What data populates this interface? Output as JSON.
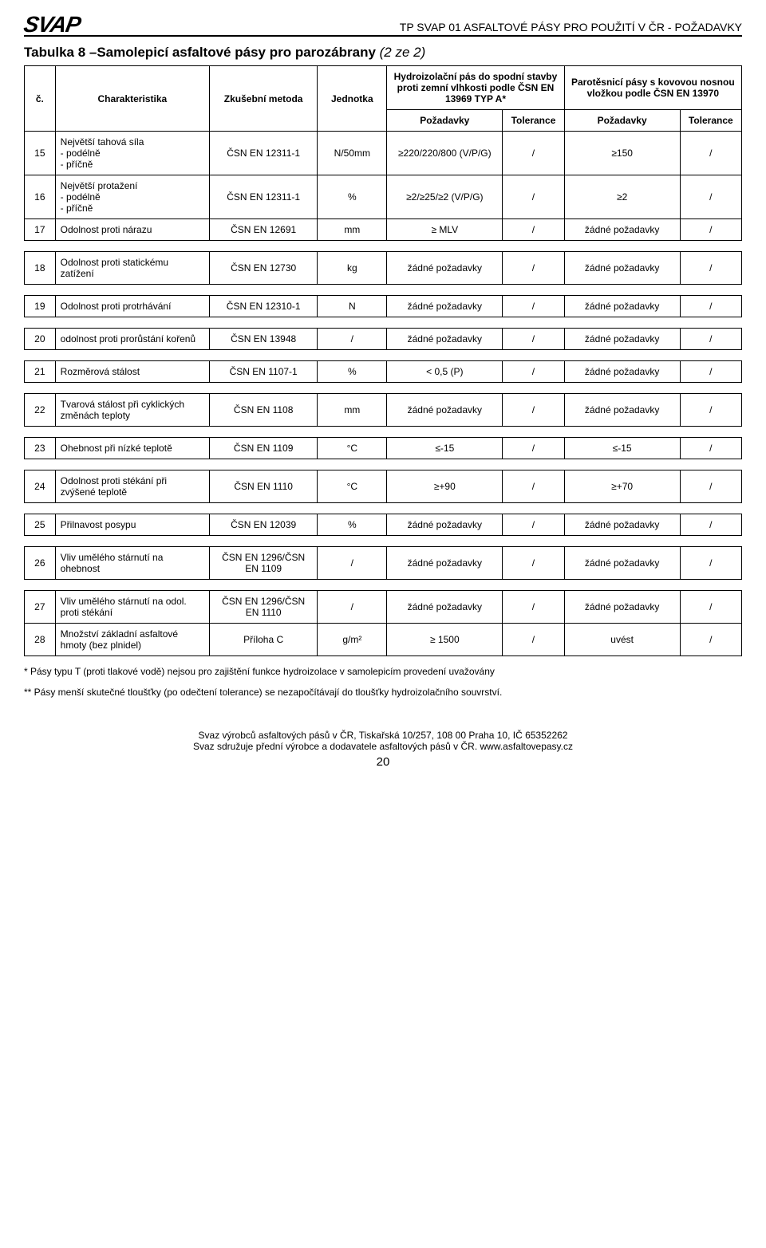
{
  "header": {
    "logo_text": "SVAP",
    "doc_title": "TP SVAP 01 ASFALTOVÉ PÁSY PRO POUŽITÍ V ČR - POŽADAVKY"
  },
  "table": {
    "title_main": "Tabulka 8 –Samolepicí asfaltové pásy pro parozábrany ",
    "title_sub": "(2 ze 2)",
    "head": {
      "col_num": "č.",
      "col_char": "Charakteristika",
      "col_method": "Zkušební metoda",
      "col_unit": "Jednotka",
      "groupA": "Hydroizolační pás do spodní stavby proti zemní vlhkosti podle ČSN EN 13969 TYP A*",
      "groupB": "Parotěsnicí pásy s kovovou nosnou vložkou podle ČSN EN 13970",
      "req": "Požadavky",
      "tol": "Tolerance"
    },
    "rows": [
      {
        "n": "15",
        "char": "Největší tahová síla\n- podélně\n- příčně",
        "method": "ČSN EN 12311-1",
        "unit": "N/50mm",
        "a_req": "≥220/220/800 (V/P/G)",
        "a_tol": "/",
        "b_req": "≥150",
        "b_tol": "/",
        "spacer": false
      },
      {
        "n": "16",
        "char": "Největší protažení\n- podélně\n- příčně",
        "method": "ČSN EN 12311-1",
        "unit": "%",
        "a_req": "≥2/≥25/≥2 (V/P/G)",
        "a_tol": "/",
        "b_req": "≥2",
        "b_tol": "/",
        "spacer": false
      },
      {
        "n": "17",
        "char": "Odolnost proti nárazu",
        "method": "ČSN EN 12691",
        "unit": "mm",
        "a_req": "≥ MLV",
        "a_tol": "/",
        "b_req": "žádné požadavky",
        "b_tol": "/",
        "spacer": true
      },
      {
        "n": "18",
        "char": "Odolnost proti statickému zatížení",
        "method": "ČSN EN 12730",
        "unit": "kg",
        "a_req": "žádné požadavky",
        "a_tol": "/",
        "b_req": "žádné požadavky",
        "b_tol": "/",
        "spacer": true
      },
      {
        "n": "19",
        "char": "Odolnost proti protrhávání",
        "method": "ČSN EN 12310-1",
        "unit": "N",
        "a_req": "žádné požadavky",
        "a_tol": "/",
        "b_req": "žádné požadavky",
        "b_tol": "/",
        "spacer": true
      },
      {
        "n": "20",
        "char": "odolnost proti prorůstání kořenů",
        "method": "ČSN EN 13948",
        "unit": "/",
        "a_req": "žádné požadavky",
        "a_tol": "/",
        "b_req": "žádné požadavky",
        "b_tol": "/",
        "spacer": true
      },
      {
        "n": "21",
        "char": "Rozměrová stálost",
        "method": "ČSN EN 1107-1",
        "unit": "%",
        "a_req": "< 0,5 (P)",
        "a_tol": "/",
        "b_req": "žádné požadavky",
        "b_tol": "/",
        "spacer": true
      },
      {
        "n": "22",
        "char": "Tvarová stálost při cyklických změnách teploty",
        "method": "ČSN EN 1108",
        "unit": "mm",
        "a_req": "žádné požadavky",
        "a_tol": "/",
        "b_req": "žádné požadavky",
        "b_tol": "/",
        "spacer": true
      },
      {
        "n": "23",
        "char": "Ohebnost při nízké teplotě",
        "method": "ČSN EN 1109",
        "unit": "°C",
        "a_req": "≤-15",
        "a_tol": "/",
        "b_req": "≤-15",
        "b_tol": "/",
        "spacer": true
      },
      {
        "n": "24",
        "char": "Odolnost proti stékání při zvýšené teplotě",
        "method": "ČSN EN 1110",
        "unit": "°C",
        "a_req": "≥+90",
        "a_tol": "/",
        "b_req": "≥+70",
        "b_tol": "/",
        "spacer": true
      },
      {
        "n": "25",
        "char": "Přilnavost posypu",
        "method": "ČSN EN 12039",
        "unit": "%",
        "a_req": "žádné požadavky",
        "a_tol": "/",
        "b_req": "žádné požadavky",
        "b_tol": "/",
        "spacer": true
      },
      {
        "n": "26",
        "char": "Vliv umělého stárnutí na ohebnost",
        "method": "ČSN EN 1296/ČSN EN 1109",
        "unit": "/",
        "a_req": "žádné požadavky",
        "a_tol": "/",
        "b_req": "žádné požadavky",
        "b_tol": "/",
        "spacer": true
      },
      {
        "n": "27",
        "char": "Vliv umělého stárnutí na odol. proti stékání",
        "method": "ČSN EN 1296/ČSN EN 1110",
        "unit": "/",
        "a_req": "žádné požadavky",
        "a_tol": "/",
        "b_req": "žádné požadavky",
        "b_tol": "/",
        "spacer": false
      },
      {
        "n": "28",
        "char": "Množství základní asfaltové hmoty (bez plnidel)",
        "method": "Příloha C",
        "unit": "g/m²",
        "a_req": "≥ 1500",
        "a_tol": "/",
        "b_req": "uvést",
        "b_tol": "/",
        "spacer": false
      }
    ],
    "footnote1": "* Pásy typu T (proti tlakové vodě) nejsou pro zajištění funkce hydroizolace v samolepicím provedení uvažovány",
    "footnote2": "** Pásy menší skutečné tloušťky (po odečtení tolerance) se nezapočítávají do tloušťky hydroizolačního souvrství."
  },
  "footer": {
    "line1": "Svaz výrobců asfaltových pásů v ČR, Tiskařská 10/257, 108 00 Praha 10, IČ 65352262",
    "line2": "Svaz sdružuje přední výrobce a dodavatele asfaltových pásů v ČR. www.asfaltovepasy.cz",
    "page": "20"
  },
  "style": {
    "border_color": "#000000",
    "background": "#ffffff",
    "font_size_body": 12,
    "font_size_title": 17,
    "col_widths_pct": [
      4,
      20,
      14,
      9,
      15,
      8,
      15,
      8
    ]
  }
}
